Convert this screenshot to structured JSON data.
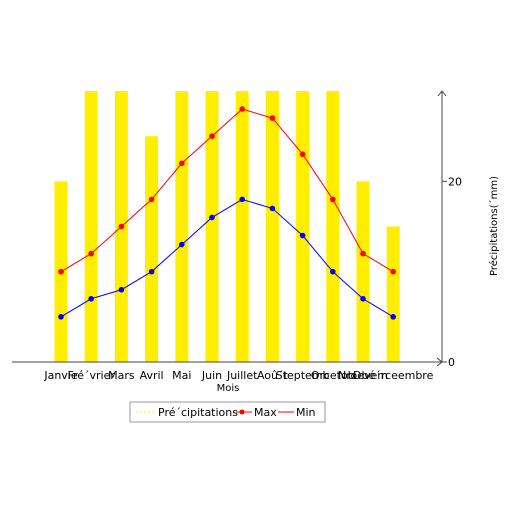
{
  "chart_data": {
    "type": "bar",
    "categories": [
      "Janvie",
      "Fré´vrier",
      "Mars",
      "Avril",
      "Mai",
      "Juin",
      "Juillet",
      "Aoû´t",
      "Steptemb",
      "Orcetob",
      "Nroevem",
      "Dbé´rceembre"
    ],
    "xlabel": "Mois",
    "ylabel": "Précipitations(´mm)",
    "ylim": [
      0,
      30
    ],
    "yticks": [
      0,
      20
    ],
    "series": [
      {
        "name": "Pré´cipitations",
        "type": "bar",
        "color": "#ffee00",
        "values": [
          20,
          30,
          30,
          25,
          30,
          30,
          30,
          30,
          30,
          30,
          20,
          15
        ]
      },
      {
        "name": "Max",
        "type": "line",
        "color": "#ff0000",
        "values": [
          10,
          12,
          15,
          18,
          22,
          25,
          28,
          27,
          23,
          18,
          12,
          10
        ]
      },
      {
        "name": "Min",
        "type": "line",
        "color": "#0000ff",
        "values": [
          5,
          7,
          8,
          10,
          13,
          16,
          18,
          17,
          14,
          10,
          7,
          5
        ]
      }
    ],
    "legend_position": "bottom"
  }
}
